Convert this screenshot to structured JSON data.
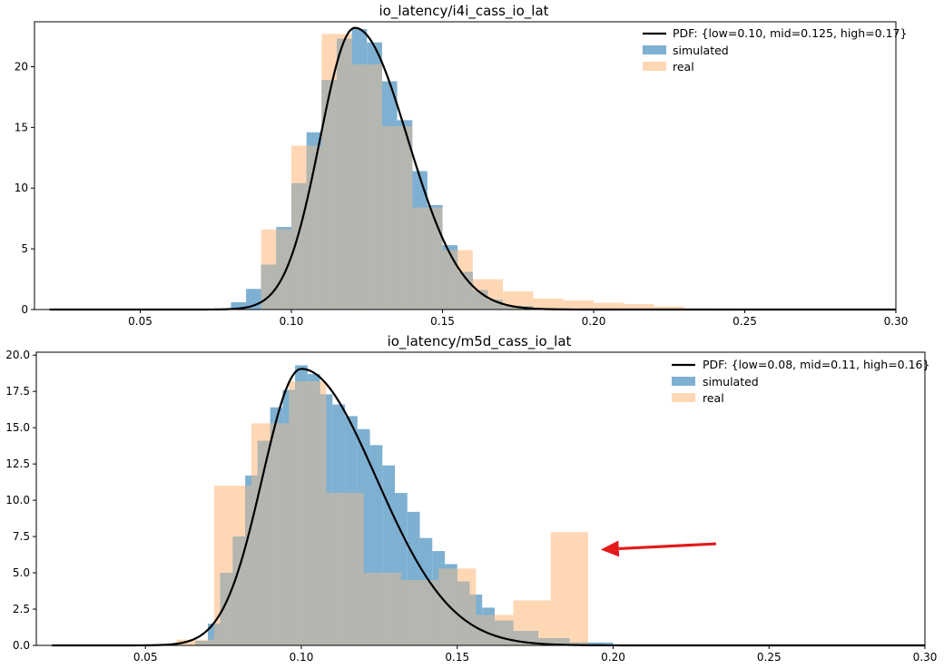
{
  "chart_data": [
    {
      "type": "histogram",
      "title": "io_latency/i4i_cass_io_lat",
      "xlabel": "",
      "ylabel": "",
      "xlim": [
        0.015,
        0.3
      ],
      "ylim": [
        0,
        23.7
      ],
      "xticks": [
        "0.05",
        "0.10",
        "0.15",
        "0.20",
        "0.25",
        "0.30"
      ],
      "yticks": [
        "0",
        "5",
        "10",
        "15",
        "20"
      ],
      "grid": false,
      "legend_position": "top-right",
      "legend": {
        "pdf": "PDF: {low=0.10, mid=0.125, high=0.17}",
        "simulated": "simulated",
        "real": "real"
      },
      "colors": {
        "simulated": "#7eb0d2",
        "real": "#ffd7b5",
        "overlap": "#b4b6af",
        "pdf": "#000000"
      },
      "pdf": {
        "mode": 0.121,
        "peak": 23.2,
        "sigma_left": 0.0115,
        "sigma_right": 0.0175,
        "x_start": 0.02,
        "x_end": 0.3
      },
      "series": [
        {
          "name": "real",
          "bins": [
            {
              "x0": 0.09,
              "x1": 0.1,
              "y": 6.6
            },
            {
              "x0": 0.1,
              "x1": 0.11,
              "y": 13.5
            },
            {
              "x0": 0.11,
              "x1": 0.12,
              "y": 22.7
            },
            {
              "x0": 0.12,
              "x1": 0.13,
              "y": 20.2
            },
            {
              "x0": 0.13,
              "x1": 0.14,
              "y": 15.1
            },
            {
              "x0": 0.14,
              "x1": 0.15,
              "y": 8.4
            },
            {
              "x0": 0.15,
              "x1": 0.16,
              "y": 4.9
            },
            {
              "x0": 0.16,
              "x1": 0.17,
              "y": 2.5
            },
            {
              "x0": 0.17,
              "x1": 0.18,
              "y": 1.5
            },
            {
              "x0": 0.18,
              "x1": 0.19,
              "y": 0.9
            },
            {
              "x0": 0.19,
              "x1": 0.2,
              "y": 0.75
            },
            {
              "x0": 0.2,
              "x1": 0.21,
              "y": 0.55
            },
            {
              "x0": 0.21,
              "x1": 0.22,
              "y": 0.45
            },
            {
              "x0": 0.22,
              "x1": 0.23,
              "y": 0.25
            },
            {
              "x0": 0.23,
              "x1": 0.24,
              "y": 0.1
            }
          ]
        },
        {
          "name": "simulated",
          "bins": [
            {
              "x0": 0.07,
              "x1": 0.08,
              "y": 0.05
            },
            {
              "x0": 0.08,
              "x1": 0.085,
              "y": 0.6
            },
            {
              "x0": 0.085,
              "x1": 0.09,
              "y": 1.7
            },
            {
              "x0": 0.09,
              "x1": 0.095,
              "y": 3.7
            },
            {
              "x0": 0.095,
              "x1": 0.1,
              "y": 6.8
            },
            {
              "x0": 0.1,
              "x1": 0.105,
              "y": 10.4
            },
            {
              "x0": 0.105,
              "x1": 0.11,
              "y": 14.6
            },
            {
              "x0": 0.11,
              "x1": 0.115,
              "y": 18.9
            },
            {
              "x0": 0.115,
              "x1": 0.12,
              "y": 22.3
            },
            {
              "x0": 0.12,
              "x1": 0.125,
              "y": 23.1
            },
            {
              "x0": 0.125,
              "x1": 0.13,
              "y": 22.0
            },
            {
              "x0": 0.13,
              "x1": 0.135,
              "y": 18.8
            },
            {
              "x0": 0.135,
              "x1": 0.14,
              "y": 15.6
            },
            {
              "x0": 0.14,
              "x1": 0.145,
              "y": 11.4
            },
            {
              "x0": 0.145,
              "x1": 0.15,
              "y": 8.6
            },
            {
              "x0": 0.15,
              "x1": 0.155,
              "y": 5.3
            },
            {
              "x0": 0.155,
              "x1": 0.16,
              "y": 3.1
            },
            {
              "x0": 0.16,
              "x1": 0.165,
              "y": 1.6
            },
            {
              "x0": 0.165,
              "x1": 0.17,
              "y": 0.8
            },
            {
              "x0": 0.17,
              "x1": 0.18,
              "y": 0.3
            },
            {
              "x0": 0.18,
              "x1": 0.19,
              "y": 0.1
            }
          ]
        }
      ]
    },
    {
      "type": "histogram",
      "title": "io_latency/m5d_cass_io_lat",
      "xlabel": "",
      "ylabel": "",
      "xlim": [
        0.015,
        0.3
      ],
      "ylim": [
        0,
        20.2
      ],
      "xticks": [
        "0.05",
        "0.10",
        "0.15",
        "0.20",
        "0.25",
        "0.30"
      ],
      "yticks": [
        "0.0",
        "2.5",
        "5.0",
        "7.5",
        "10.0",
        "12.5",
        "15.0",
        "17.5",
        "20.0"
      ],
      "grid": false,
      "legend_position": "top-right",
      "legend": {
        "pdf": "PDF: {low=0.08, mid=0.11, high=0.16}",
        "simulated": "simulated",
        "real": "real"
      },
      "colors": {
        "simulated": "#7eb0d2",
        "real": "#ffd7b5",
        "overlap": "#b4b6af",
        "pdf": "#000000",
        "arrow": "#e31a1c"
      },
      "pdf": {
        "mode": 0.1,
        "peak": 19.05,
        "sigma_left": 0.0125,
        "sigma_right": 0.024,
        "x_start": 0.02,
        "x_end": 0.3
      },
      "annotation": {
        "type": "arrow",
        "from": [
          0.233,
          7.0
        ],
        "to": [
          0.196,
          6.6
        ],
        "color": "#e31a1c"
      },
      "series": [
        {
          "name": "real",
          "bins": [
            {
              "x0": 0.06,
              "x1": 0.072,
              "y": 0.4
            },
            {
              "x0": 0.072,
              "x1": 0.084,
              "y": 11.0
            },
            {
              "x0": 0.084,
              "x1": 0.096,
              "y": 15.3
            },
            {
              "x0": 0.096,
              "x1": 0.108,
              "y": 18.2
            },
            {
              "x0": 0.108,
              "x1": 0.12,
              "y": 10.5
            },
            {
              "x0": 0.12,
              "x1": 0.132,
              "y": 5.0
            },
            {
              "x0": 0.132,
              "x1": 0.144,
              "y": 4.5
            },
            {
              "x0": 0.144,
              "x1": 0.156,
              "y": 5.3
            },
            {
              "x0": 0.156,
              "x1": 0.168,
              "y": 2.1
            },
            {
              "x0": 0.168,
              "x1": 0.18,
              "y": 3.1
            },
            {
              "x0": 0.18,
              "x1": 0.192,
              "y": 7.8
            }
          ]
        },
        {
          "name": "simulated",
          "bins": [
            {
              "x0": 0.066,
              "x1": 0.07,
              "y": 0.3
            },
            {
              "x0": 0.07,
              "x1": 0.074,
              "y": 1.5
            },
            {
              "x0": 0.074,
              "x1": 0.078,
              "y": 5.0
            },
            {
              "x0": 0.078,
              "x1": 0.082,
              "y": 7.5
            },
            {
              "x0": 0.082,
              "x1": 0.086,
              "y": 11.7
            },
            {
              "x0": 0.086,
              "x1": 0.09,
              "y": 14.1
            },
            {
              "x0": 0.09,
              "x1": 0.094,
              "y": 16.4
            },
            {
              "x0": 0.094,
              "x1": 0.098,
              "y": 17.6
            },
            {
              "x0": 0.098,
              "x1": 0.102,
              "y": 19.3
            },
            {
              "x0": 0.102,
              "x1": 0.106,
              "y": 18.7
            },
            {
              "x0": 0.106,
              "x1": 0.11,
              "y": 17.3
            },
            {
              "x0": 0.11,
              "x1": 0.114,
              "y": 16.6
            },
            {
              "x0": 0.114,
              "x1": 0.118,
              "y": 15.8
            },
            {
              "x0": 0.118,
              "x1": 0.122,
              "y": 14.9
            },
            {
              "x0": 0.122,
              "x1": 0.126,
              "y": 13.8
            },
            {
              "x0": 0.126,
              "x1": 0.13,
              "y": 12.4
            },
            {
              "x0": 0.13,
              "x1": 0.134,
              "y": 10.5
            },
            {
              "x0": 0.134,
              "x1": 0.138,
              "y": 9.2
            },
            {
              "x0": 0.138,
              "x1": 0.142,
              "y": 7.4
            },
            {
              "x0": 0.142,
              "x1": 0.146,
              "y": 6.5
            },
            {
              "x0": 0.146,
              "x1": 0.15,
              "y": 5.6
            },
            {
              "x0": 0.15,
              "x1": 0.154,
              "y": 4.4
            },
            {
              "x0": 0.154,
              "x1": 0.158,
              "y": 3.5
            },
            {
              "x0": 0.158,
              "x1": 0.162,
              "y": 2.6
            },
            {
              "x0": 0.162,
              "x1": 0.168,
              "y": 1.7
            },
            {
              "x0": 0.168,
              "x1": 0.176,
              "y": 1.0
            },
            {
              "x0": 0.176,
              "x1": 0.186,
              "y": 0.5
            },
            {
              "x0": 0.186,
              "x1": 0.2,
              "y": 0.2
            }
          ]
        }
      ]
    }
  ]
}
